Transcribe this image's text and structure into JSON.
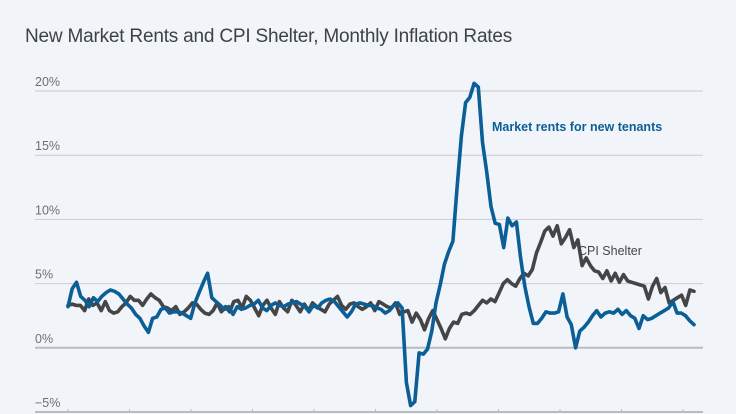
{
  "chart_data": {
    "type": "line",
    "title": "New Market Rents and CPI Shelter, Monthly Inflation Rates",
    "xlabel": "",
    "ylabel": "",
    "ylim": [
      -5,
      20
    ],
    "yticks": [
      {
        "value": 20,
        "label": "20%"
      },
      {
        "value": 15,
        "label": "15%"
      },
      {
        "value": 10,
        "label": "10%"
      },
      {
        "value": 5,
        "label": "5%"
      },
      {
        "value": 0,
        "label": "0%"
      },
      {
        "value": -5,
        "label": "−5%"
      }
    ],
    "grid": true,
    "legend": "inline",
    "series": [
      {
        "name": "Market rents for new tenants",
        "color": "#0b5f96",
        "values": [
          3.2,
          4.6,
          5.1,
          4.0,
          3.7,
          3.2,
          3.9,
          3.6,
          4.0,
          4.3,
          4.5,
          4.4,
          4.2,
          3.8,
          3.4,
          3.1,
          2.6,
          2.3,
          1.7,
          1.2,
          2.3,
          2.4,
          3.0,
          3.1,
          2.7,
          2.8,
          2.8,
          2.7,
          2.5,
          2.3,
          3.5,
          4.3,
          5.1,
          5.8,
          3.9,
          3.6,
          3.3,
          3.0,
          3.2,
          2.6,
          3.2,
          3.0,
          3.1,
          3.3,
          3.4,
          3.7,
          3.1,
          2.9,
          3.3,
          3.5,
          3.3,
          3.2,
          3.4,
          3.5,
          3.6,
          3.4,
          3.2,
          2.8,
          3.3,
          3.1,
          3.5,
          3.7,
          3.8,
          3.6,
          3.2,
          2.8,
          2.4,
          2.8,
          3.4,
          3.5,
          3.4,
          3.3,
          3.3,
          3.1,
          3.0,
          2.7,
          2.9,
          3.3,
          3.5,
          3.1,
          -2.7,
          -4.5,
          -4.2,
          -0.4,
          -0.5,
          -0.1,
          1.3,
          3.5,
          4.9,
          6.5,
          7.5,
          8.3,
          12.5,
          16.5,
          19.1,
          19.5,
          20.6,
          20.3,
          16.0,
          13.7,
          11.0,
          9.7,
          9.6,
          7.8,
          10.1,
          9.5,
          9.8,
          7.0,
          4.8,
          3.2,
          1.9,
          1.9,
          2.3,
          2.8,
          2.7,
          2.7,
          2.8,
          4.2,
          2.4,
          1.8,
          0.0,
          1.3,
          1.6,
          2.0,
          2.5,
          2.9,
          2.4,
          2.7,
          2.8,
          2.7,
          3.0,
          2.6,
          2.9,
          2.5,
          2.3,
          1.5,
          2.5,
          2.2,
          2.3,
          2.5,
          2.7,
          2.9,
          3.1,
          3.6,
          2.7,
          2.7,
          2.5,
          2.1,
          1.8
        ]
      },
      {
        "name": "CPI Shelter",
        "color": "#444547",
        "values": [
          3.3,
          3.4,
          3.3,
          3.3,
          2.9,
          3.8,
          3.3,
          3.5,
          2.9,
          3.6,
          2.9,
          2.7,
          2.8,
          3.2,
          3.5,
          4.0,
          3.7,
          3.7,
          3.3,
          3.8,
          4.2,
          3.9,
          3.7,
          3.2,
          3.1,
          2.9,
          3.2,
          2.6,
          2.8,
          3.1,
          3.5,
          3.4,
          3.0,
          2.7,
          2.6,
          2.9,
          3.5,
          2.8,
          3.2,
          2.8,
          3.6,
          3.7,
          3.1,
          4.0,
          3.7,
          3.1,
          2.5,
          3.3,
          3.7,
          3.1,
          2.6,
          3.6,
          3.1,
          2.8,
          3.7,
          3.3,
          2.8,
          3.4,
          2.9,
          3.5,
          3.2,
          3.0,
          2.8,
          3.4,
          3.7,
          4.0,
          3.3,
          3.0,
          3.4,
          3.5,
          3.2,
          3.0,
          3.2,
          3.5,
          2.9,
          3.6,
          3.4,
          3.2,
          3.1,
          3.5,
          2.6,
          2.8,
          2.9,
          2.0,
          2.7,
          2.2,
          1.4,
          2.3,
          2.9,
          2.2,
          1.5,
          0.7,
          1.5,
          2.0,
          1.9,
          2.6,
          2.7,
          2.6,
          2.9,
          3.3,
          3.7,
          3.5,
          3.8,
          3.6,
          4.3,
          5.0,
          5.3,
          5.0,
          4.8,
          5.4,
          5.8,
          5.6,
          6.1,
          7.4,
          8.2,
          9.1,
          9.4,
          8.7,
          9.5,
          8.1,
          8.6,
          9.2,
          7.8,
          8.4,
          6.4,
          7.0,
          6.4,
          6.0,
          5.9,
          5.4,
          6.0,
          5.2,
          5.8,
          5.1,
          5.7,
          5.2,
          5.1,
          5.0,
          4.9,
          4.8,
          3.8,
          4.8,
          5.4,
          4.3,
          4.7,
          3.5,
          3.7,
          3.9,
          4.1,
          3.3,
          4.5,
          4.4
        ]
      }
    ]
  }
}
